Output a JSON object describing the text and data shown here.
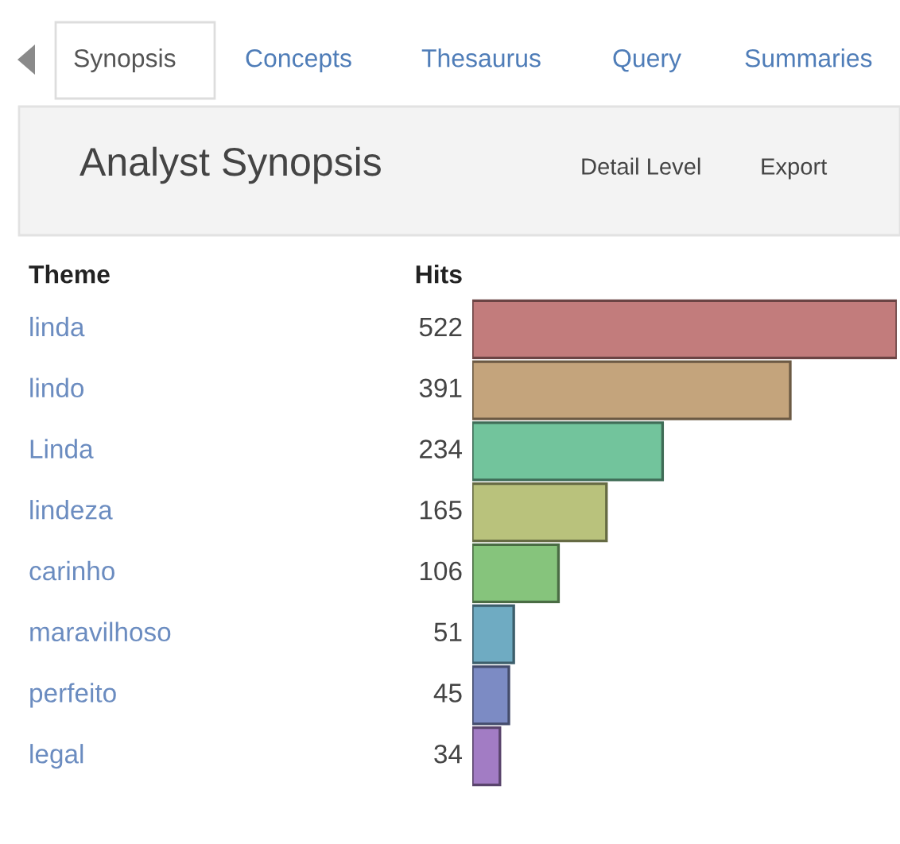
{
  "chart_data": {
    "type": "bar",
    "orientation": "horizontal",
    "title": "Analyst Synopsis",
    "categories": [
      "linda",
      "lindo",
      "Linda",
      "lindeza",
      "carinho",
      "maravilhoso",
      "perfeito",
      "legal"
    ],
    "values": [
      522,
      391,
      234,
      165,
      106,
      51,
      45,
      34
    ],
    "colors": [
      "#c27c7c",
      "#c4a47c",
      "#72c49c",
      "#b9c27c",
      "#86c47c",
      "#6fabc2",
      "#7c8bc4",
      "#a27cc4"
    ],
    "data_labels": true,
    "annotations": [
      "Synopsis",
      "Concepts",
      "Thesaurus",
      "Query",
      "Summaries",
      "Detail Level",
      "Export",
      "Theme",
      "Hits"
    ]
  }
}
